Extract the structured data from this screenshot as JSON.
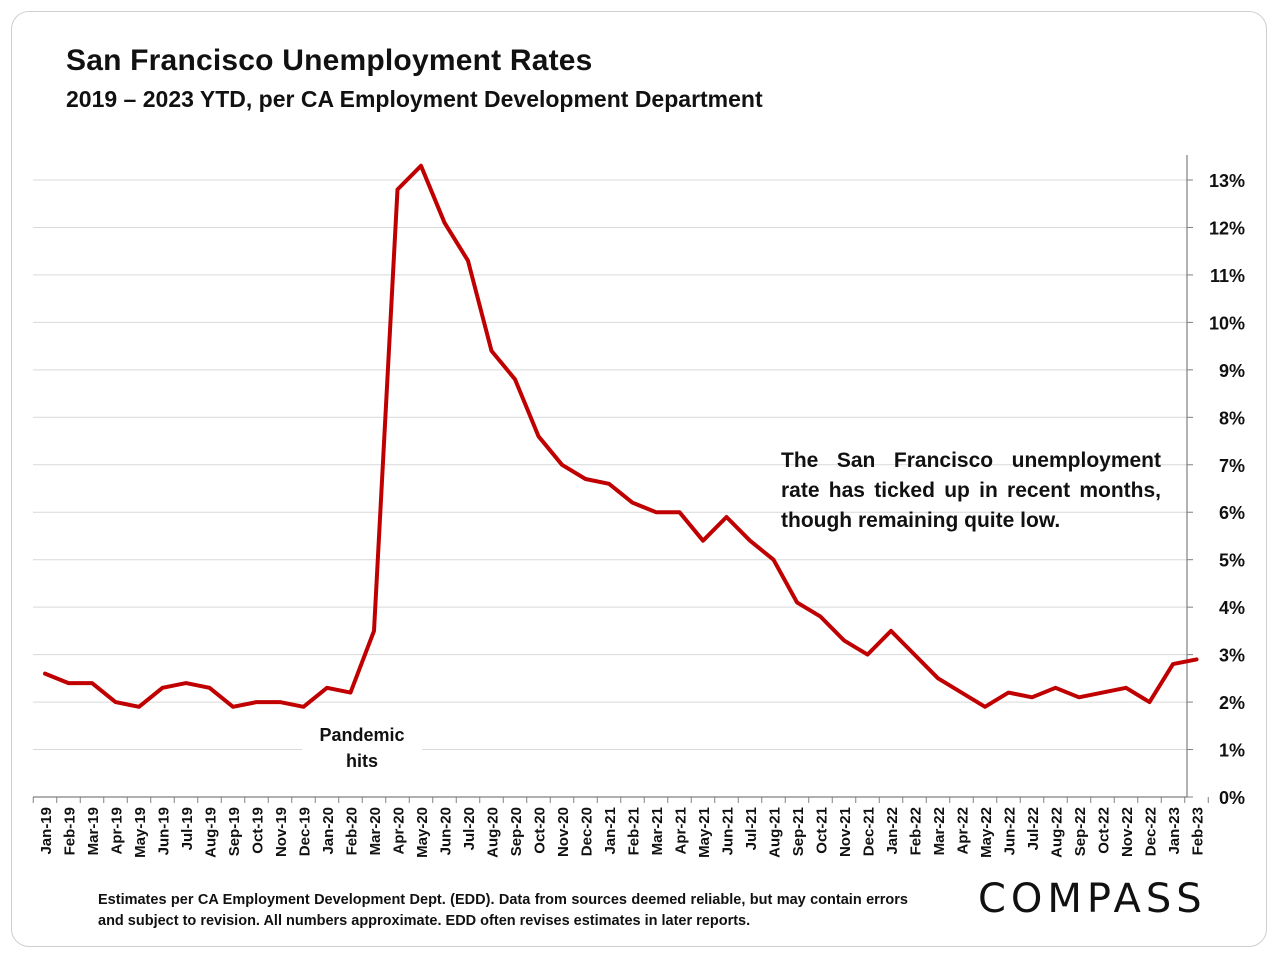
{
  "title": "San Francisco Unemployment Rates",
  "subtitle": "2019 – 2023 YTD, per CA Employment Development Department",
  "annotation": "The San Francisco unemployment rate has ticked up in recent months, though remaining quite low.",
  "pandemic_label": "Pandemic hits",
  "footnote": "Estimates per CA Employment Development Dept. (EDD). Data from sources deemed reliable, but may contain errors and subject to revision. All numbers approximate. EDD often revises estimates in later reports.",
  "logo_text": "COMPASS",
  "colors": {
    "line": "#c00000",
    "grid": "#d9d9d9",
    "axis": "#808080",
    "text": "#111111"
  },
  "chart_data": {
    "type": "line",
    "title": "San Francisco Unemployment Rates",
    "ylabel": "",
    "xlabel": "",
    "ylim": [
      0,
      13
    ],
    "ytick_values": [
      0,
      1,
      2,
      3,
      4,
      5,
      6,
      7,
      8,
      9,
      10,
      11,
      12,
      13
    ],
    "ytick_labels": [
      "0%",
      "1%",
      "2%",
      "3%",
      "4%",
      "5%",
      "6%",
      "7%",
      "8%",
      "9%",
      "10%",
      "11%",
      "12%",
      "13%"
    ],
    "y_axis_side": "right",
    "grid": true,
    "categories": [
      "Jan-19",
      "Feb-19",
      "Mar-19",
      "Apr-19",
      "May-19",
      "Jun-19",
      "Jul-19",
      "Aug-19",
      "Sep-19",
      "Oct-19",
      "Nov-19",
      "Dec-19",
      "Jan-20",
      "Feb-20",
      "Mar-20",
      "Apr-20",
      "May-20",
      "Jun-20",
      "Jul-20",
      "Aug-20",
      "Sep-20",
      "Oct-20",
      "Nov-20",
      "Dec-20",
      "Jan-21",
      "Feb-21",
      "Mar-21",
      "Apr-21",
      "May-21",
      "Jun-21",
      "Jul-21",
      "Aug-21",
      "Sep-21",
      "Oct-21",
      "Nov-21",
      "Dec-21",
      "Jan-22",
      "Feb-22",
      "Mar-22",
      "Apr-22",
      "May-22",
      "Jun-22",
      "Jul-22",
      "Aug-22",
      "Sep-22",
      "Oct-22",
      "Nov-22",
      "Dec-22",
      "Jan-23",
      "Feb-23"
    ],
    "series": [
      {
        "name": "San Francisco Unemployment Rate",
        "values": [
          2.6,
          2.4,
          2.4,
          2.0,
          1.9,
          2.3,
          2.4,
          2.3,
          1.9,
          2.0,
          2.0,
          1.9,
          2.3,
          2.2,
          3.5,
          12.8,
          13.3,
          12.1,
          11.3,
          9.4,
          8.8,
          7.6,
          7.0,
          6.7,
          6.6,
          6.2,
          6.0,
          6.0,
          5.4,
          5.9,
          5.4,
          5.0,
          4.1,
          3.8,
          3.3,
          3.0,
          3.5,
          3.0,
          2.5,
          2.2,
          1.9,
          2.2,
          2.1,
          2.3,
          2.1,
          2.2,
          2.3,
          2.0,
          2.8,
          2.9
        ]
      }
    ],
    "annotations": [
      "The San Francisco unemployment rate has ticked up in recent months, though remaining quite low.",
      "Pandemic hits"
    ]
  }
}
